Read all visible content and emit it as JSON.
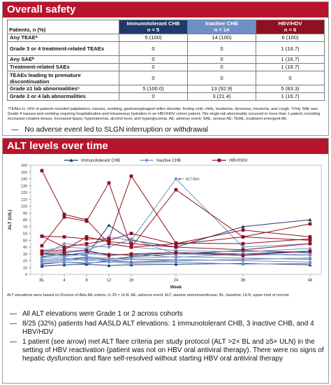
{
  "safety": {
    "title": "Overall safety",
    "table": {
      "row_header": "Patients, n (%)",
      "columns": [
        {
          "name": "Immunotolerant CHB",
          "n": "n = 5"
        },
        {
          "name": "Inactive CHB",
          "n": "n = 14"
        },
        {
          "name": "HBV/HDV",
          "n": "n = 6"
        }
      ],
      "rows": [
        {
          "label": "Any TEAEᵃ",
          "values": [
            "5 (100)",
            "14 (100)",
            "6 (100)"
          ]
        },
        {
          "label": "Grade 3 or 4 treatment-related TEAEs",
          "values": [
            "0",
            "0",
            "1 (16.7)"
          ]
        },
        {
          "label": "Any SAEᵇ",
          "values": [
            "0",
            "0",
            "1 (16.7)"
          ]
        },
        {
          "label": "Treatment-related SAEs",
          "values": [
            "0",
            "0",
            "1 (16.7)"
          ]
        },
        {
          "label": "TEAEs leading to premature discontinuation",
          "values": [
            "0",
            "0",
            "0"
          ]
        },
        {
          "label": "Grade ≥1 lab abnormalitiesᶜ",
          "values": [
            "5 (100.0)",
            "13 (92.9)",
            "5 (83.3)"
          ]
        },
        {
          "label": "Grade 3 or 4 lab abnormalities",
          "values": [
            "0",
            "3 (21.4)",
            "1 (16.7)"
          ]
        }
      ]
    },
    "footnote": "ᵃTEAEs in >5% of patients included palpitations, nausea, vomiting, gastroesophageal reflex disorder, feeling cold, chills, headache, dizziness, insomnia, and cough. ᵇOnly SAE was Grade 4 nausea and vomiting requiring hospitalization and intravenous hydration in an HBV/HDV cohort patient. ᶜNo single lab abnormality occurred in more than 1 patient, including increased creatine kinase, increased lipase, hyponatremia, alcohol level, and hyperglycemia. AE, adverse event; SAE, serious AE; TEAE, treatment-emergent AE.",
    "bullet": "No adverse event led to SLGN interruption or withdrawal"
  },
  "alt": {
    "title": "ALT levels over time",
    "note": "ALT elevations were based on Division of Aids AE criteria >1.25 × ULN. AE, adverse event; ALT, alanine aminotransferase; BL, baseline; ULN, upper limit of normal.",
    "bullets": [
      "All ALT elevations were Grade 1 or 2 across cohorts",
      "8/25 (32%) patients had AASLD ALT elevations: 1 immunotolerant CHB, 3 inactive CHB, and 4 HBV/HDV",
      "1 patient (see arrow) met ALT flare criteria per study protocol (ALT >2× BL and ≥5× ULN) in the setting of HBV reactivation (patient was not on HBV oral antiviral therapy). There were no signs of hepatic dysfunction and flare self-resolved without starting HBV oral antiviral therapy"
    ]
  },
  "chart_data": {
    "type": "line",
    "xlabel": "Week",
    "ylabel": "ALT (U/L)",
    "x_ticks": [
      "BL",
      "4",
      "8",
      "12",
      "16",
      "24",
      "36",
      "48"
    ],
    "x_positions": [
      0,
      4,
      8,
      12,
      16,
      24,
      36,
      48
    ],
    "xlim": [
      -2,
      50
    ],
    "ylim": [
      0,
      160
    ],
    "y_ticks": [
      0,
      10,
      20,
      30,
      40,
      50,
      60,
      70,
      80,
      90,
      100,
      110,
      120,
      130,
      140,
      150,
      160
    ],
    "legend_position": "top",
    "annotation": {
      "text": "ALT flare",
      "x": 24,
      "y": 140
    },
    "colors": {
      "Immunotolerant CHB": "#1f3a6b",
      "Inactive CHB": "#6f8fc8",
      "HBV/HDV": "#8f1020"
    },
    "series": [
      {
        "name": "Immunotolerant CHB",
        "marker": "triangle",
        "x": [
          0,
          4,
          8,
          12,
          16,
          24,
          36,
          48
        ],
        "y": [
          26,
          30,
          28,
          72,
          50,
          40,
          70,
          80
        ]
      },
      {
        "name": "Immunotolerant CHB",
        "marker": "triangle",
        "x": [
          0,
          4,
          8,
          12,
          16,
          24,
          36,
          48
        ],
        "y": [
          20,
          22,
          24,
          22,
          26,
          30,
          35,
          32
        ]
      },
      {
        "name": "Immunotolerant CHB",
        "marker": "triangle",
        "x": [
          0,
          4,
          8,
          12,
          16,
          24,
          36,
          48
        ],
        "y": [
          15,
          18,
          16,
          20,
          18,
          20,
          22,
          24
        ]
      },
      {
        "name": "Immunotolerant CHB",
        "marker": "triangle",
        "x": [
          0,
          4,
          8,
          12,
          16,
          24,
          36,
          48
        ],
        "y": [
          12,
          14,
          15,
          13,
          14,
          15,
          16,
          14
        ]
      },
      {
        "name": "Immunotolerant CHB",
        "marker": "triangle",
        "x": [
          0,
          4,
          8,
          12,
          16,
          24,
          36,
          48
        ],
        "y": [
          30,
          28,
          32,
          30,
          28,
          32,
          30,
          34
        ]
      },
      {
        "name": "Inactive CHB",
        "marker": "diamond",
        "x": [
          0,
          4,
          8,
          12,
          16,
          24,
          36,
          48
        ],
        "y": [
          35,
          40,
          38,
          55,
          50,
          140,
          40,
          45
        ]
      },
      {
        "name": "Inactive CHB",
        "marker": "diamond",
        "x": [
          0,
          4,
          8,
          12,
          16,
          24,
          36,
          48
        ],
        "y": [
          28,
          45,
          42,
          40,
          52,
          30,
          28,
          30
        ]
      },
      {
        "name": "Inactive CHB",
        "marker": "diamond",
        "x": [
          0,
          4,
          8,
          12,
          16,
          24,
          36,
          48
        ],
        "y": [
          25,
          26,
          30,
          28,
          30,
          25,
          30,
          28
        ]
      },
      {
        "name": "Inactive CHB",
        "marker": "diamond",
        "x": [
          0,
          4,
          8,
          12,
          16,
          24,
          36,
          48
        ],
        "y": [
          22,
          24,
          20,
          22,
          24,
          26,
          24,
          22
        ]
      },
      {
        "name": "Inactive CHB",
        "marker": "diamond",
        "x": [
          0,
          4,
          8,
          12,
          16,
          24,
          36,
          48
        ],
        "y": [
          18,
          20,
          22,
          20,
          22,
          22,
          20,
          18
        ]
      },
      {
        "name": "Inactive CHB",
        "marker": "diamond",
        "x": [
          0,
          4,
          8,
          12,
          16,
          24,
          36,
          48
        ],
        "y": [
          32,
          34,
          36,
          45,
          40,
          35,
          33,
          38
        ]
      },
      {
        "name": "Inactive CHB",
        "marker": "diamond",
        "x": [
          0,
          4,
          8,
          12,
          16,
          24,
          36,
          48
        ],
        "y": [
          16,
          18,
          17,
          18,
          16,
          18,
          15,
          16
        ]
      },
      {
        "name": "Inactive CHB",
        "marker": "diamond",
        "x": [
          0,
          4,
          8,
          12,
          16,
          24,
          36,
          48
        ],
        "y": [
          20,
          22,
          26,
          24,
          22,
          20,
          22,
          24
        ]
      },
      {
        "name": "HBV/HDV",
        "marker": "square",
        "x": [
          0,
          4,
          8,
          12,
          16,
          24,
          36,
          48
        ],
        "y": [
          152,
          88,
          80,
          45,
          40,
          45,
          65,
          55
        ]
      },
      {
        "name": "HBV/HDV",
        "marker": "square",
        "x": [
          0,
          4,
          8,
          12,
          16,
          24,
          36,
          48
        ],
        "y": [
          42,
          84,
          78,
          134,
          40,
          124,
          55,
          50
        ]
      },
      {
        "name": "HBV/HDV",
        "marker": "square",
        "x": [
          0,
          4,
          8,
          12,
          16,
          24,
          36,
          48
        ],
        "y": [
          56,
          55,
          52,
          52,
          144,
          46,
          45,
          52
        ]
      },
      {
        "name": "HBV/HDV",
        "marker": "square",
        "x": [
          0,
          4,
          8,
          12,
          16,
          24,
          36,
          48
        ],
        "y": [
          56,
          40,
          45,
          50,
          60,
          44,
          55,
          74
        ]
      },
      {
        "name": "HBV/HDV",
        "marker": "square",
        "x": [
          0,
          4,
          8,
          12,
          16,
          24,
          36,
          48
        ],
        "y": [
          34,
          36,
          55,
          48,
          45,
          40,
          36,
          45
        ]
      },
      {
        "name": "HBV/HDV",
        "marker": "square",
        "x": [
          0,
          4,
          8,
          12,
          16,
          24,
          36,
          48
        ],
        "y": [
          30,
          32,
          35,
          28,
          30,
          32,
          28,
          34
        ]
      }
    ]
  }
}
